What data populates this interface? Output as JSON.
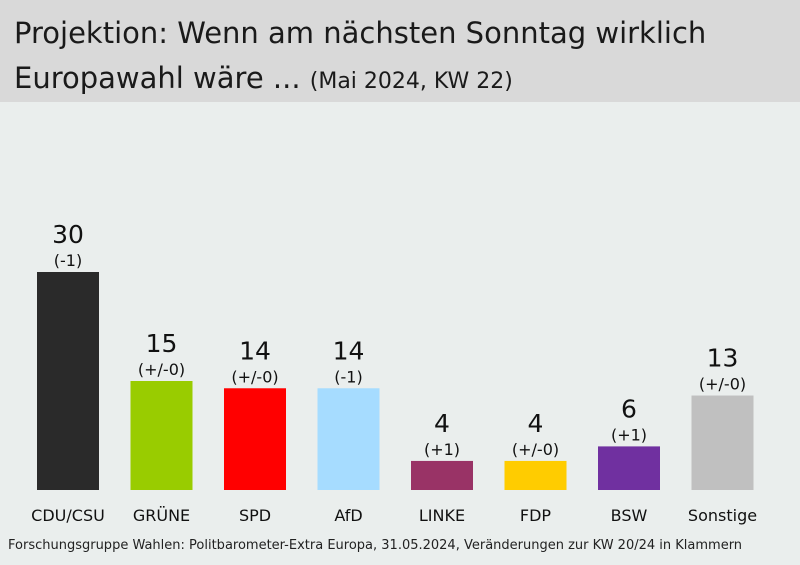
{
  "header": {
    "title_line1": "Projektion: Wenn am nächsten Sonntag wirklich",
    "title_line2": "Europawahl wäre ...",
    "subtitle": "(Mai 2024, KW 22)"
  },
  "source": "Forschungsgruppe Wahlen: Politbarometer-Extra Europa, 31.05.2024, Veränderungen zur KW 20/24 in Klammern",
  "chart_data": {
    "type": "bar",
    "title": "Projektion: Wenn am nächsten Sonntag wirklich Europawahl wäre ...",
    "subtitle": "(Mai 2024, KW 22)",
    "categories": [
      "CDU/CSU",
      "GRÜNE",
      "SPD",
      "AfD",
      "LINKE",
      "FDP",
      "BSW",
      "Sonstige"
    ],
    "values": [
      30,
      15,
      14,
      14,
      4,
      4,
      6,
      13
    ],
    "changes": [
      "(-1)",
      "(+/-0)",
      "(+/-0)",
      "(-1)",
      "(+1)",
      "(+/-0)",
      "(+1)",
      "(+/-0)"
    ],
    "colors": [
      "#2a2a2a",
      "#99cc00",
      "#ff0000",
      "#a6dcff",
      "#993366",
      "#ffcc00",
      "#7030a0",
      "#c0c0c0"
    ],
    "ylim": [
      0,
      30
    ],
    "grid": false,
    "legend": "none"
  }
}
